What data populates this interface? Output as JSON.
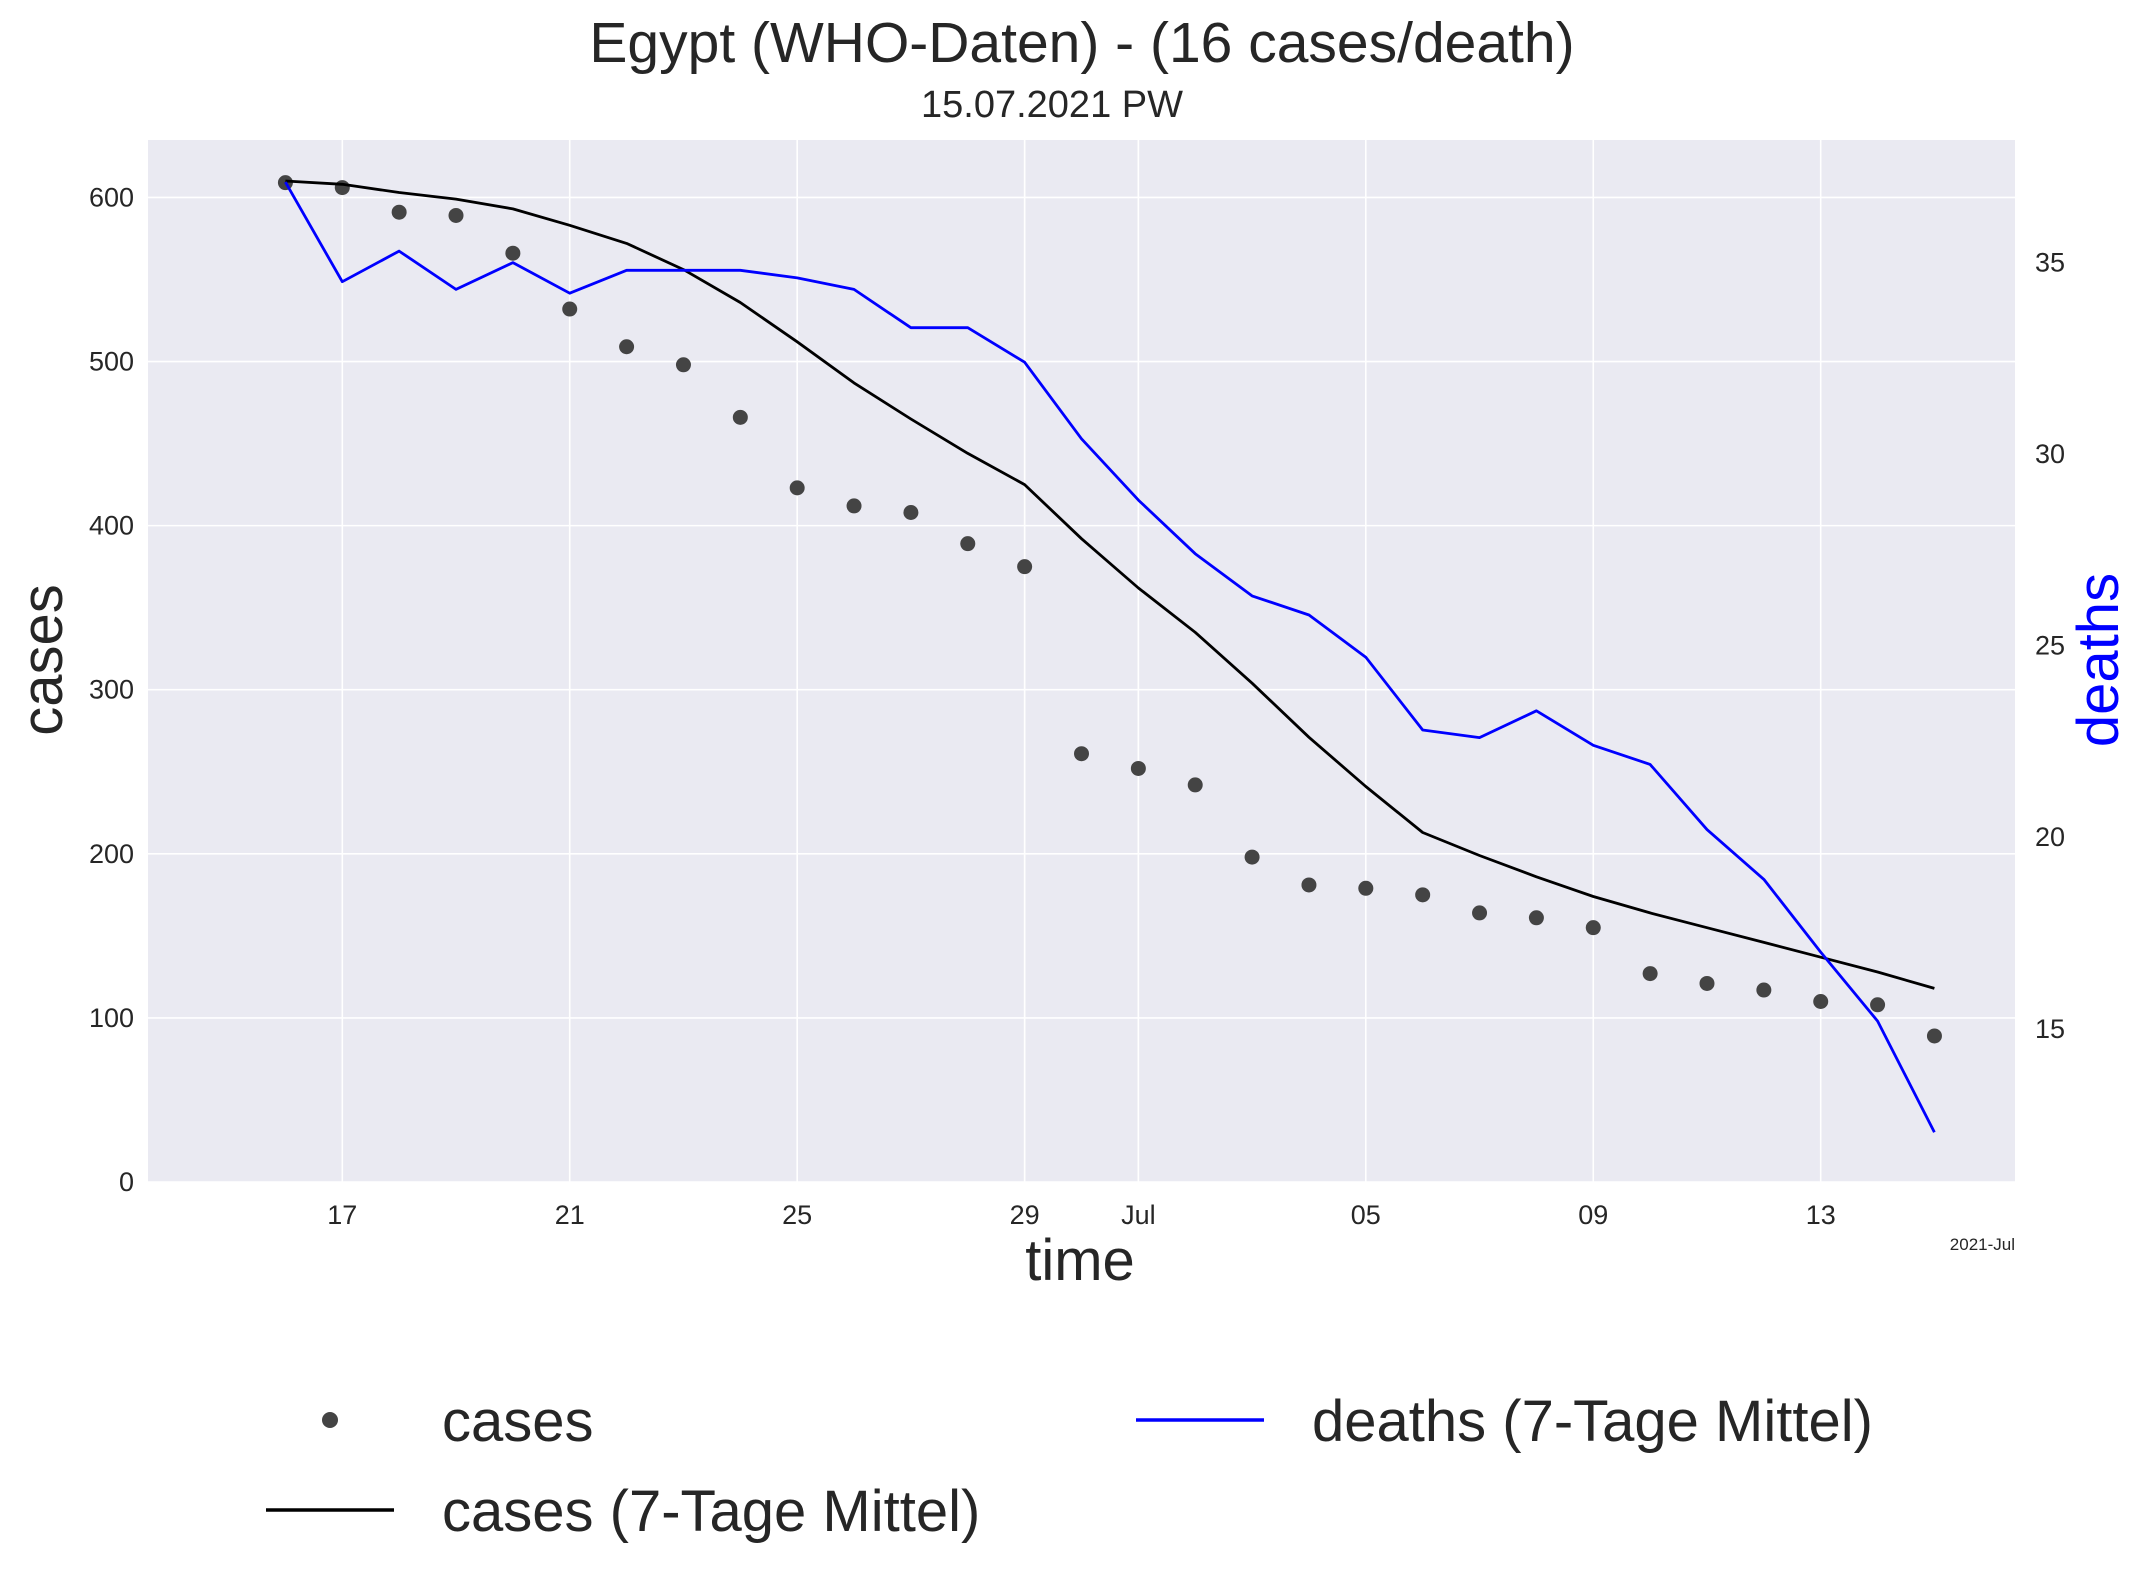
{
  "chart_data": {
    "type": "line",
    "title": "Egypt (WHO-Daten) - (16 cases/death)",
    "subtitle": "15.07.2021 PW",
    "xlabel": "time",
    "ylabel": "cases",
    "ylabel_right": "deaths",
    "x_offset_label": "2021-Jul",
    "x": [
      "2021-06-16",
      "2021-06-17",
      "2021-06-18",
      "2021-06-19",
      "2021-06-20",
      "2021-06-21",
      "2021-06-22",
      "2021-06-23",
      "2021-06-24",
      "2021-06-25",
      "2021-06-26",
      "2021-06-27",
      "2021-06-28",
      "2021-06-29",
      "2021-06-30",
      "2021-07-01",
      "2021-07-02",
      "2021-07-03",
      "2021-07-04",
      "2021-07-05",
      "2021-07-06",
      "2021-07-07",
      "2021-07-08",
      "2021-07-09",
      "2021-07-10",
      "2021-07-11",
      "2021-07-12",
      "2021-07-13",
      "2021-07-14",
      "2021-07-15"
    ],
    "xticks": [
      {
        "date": "2021-06-17",
        "label": "17"
      },
      {
        "date": "2021-06-21",
        "label": "21"
      },
      {
        "date": "2021-06-25",
        "label": "25"
      },
      {
        "date": "2021-06-29",
        "label": "29"
      },
      {
        "date": "2021-07-01",
        "label": "Jul"
      },
      {
        "date": "2021-07-05",
        "label": "05"
      },
      {
        "date": "2021-07-09",
        "label": "09"
      },
      {
        "date": "2021-07-13",
        "label": "13"
      }
    ],
    "xlim": [
      "2021-06-13 14:00",
      "2021-07-16 10:00"
    ],
    "ylim": [
      0,
      635
    ],
    "yticks": [
      0,
      100,
      200,
      300,
      400,
      500,
      600
    ],
    "ylim_right": [
      11,
      38.2
    ],
    "yticks_right": [
      15,
      20,
      25,
      30,
      35
    ],
    "grid": true,
    "series": [
      {
        "name": "cases",
        "kind": "scatter",
        "axis": "left",
        "color": "#444444",
        "values": [
          609,
          606,
          591,
          589,
          566,
          532,
          509,
          498,
          466,
          423,
          412,
          408,
          389,
          375,
          261,
          252,
          242,
          198,
          181,
          179,
          175,
          164,
          161,
          155,
          127,
          121,
          117,
          110,
          108,
          89
        ]
      },
      {
        "name": "cases (7-Tage Mittel)",
        "kind": "line",
        "axis": "left",
        "color": "#000000",
        "values": [
          610,
          608,
          603,
          599,
          593,
          583,
          572,
          556,
          536,
          512,
          487,
          465,
          444,
          425,
          392,
          362,
          335,
          304,
          271,
          241,
          213,
          199,
          186,
          174,
          164,
          155,
          146,
          137,
          128,
          118
        ]
      },
      {
        "name": "deaths (7-Tage Mittel)",
        "kind": "line",
        "axis": "right",
        "color": "#0000ff",
        "values": [
          37.1,
          34.5,
          35.3,
          34.3,
          35.0,
          34.2,
          34.8,
          34.8,
          34.8,
          34.6,
          34.3,
          33.3,
          33.3,
          32.4,
          30.4,
          28.8,
          27.4,
          26.3,
          25.8,
          24.7,
          22.8,
          22.6,
          23.3,
          22.4,
          21.9,
          20.2,
          18.9,
          17.0,
          15.2,
          12.3
        ]
      }
    ],
    "legend_position": "bottom"
  },
  "legend": {
    "cases": "cases",
    "cases_avg": "cases (7-Tage Mittel)",
    "deaths_avg": "deaths (7-Tage Mittel)"
  },
  "colors": {
    "plot_background": "#eaeaf2",
    "grid": "#ffffff",
    "cases_points": "#444444",
    "cases_avg_line": "#000000",
    "deaths_avg_line": "#0000ff"
  }
}
